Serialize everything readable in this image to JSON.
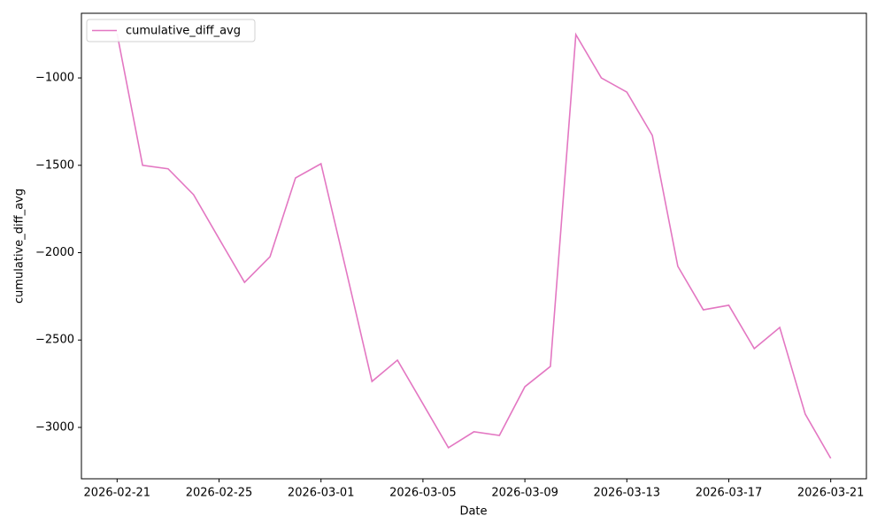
{
  "chart_data": {
    "type": "line",
    "xlabel": "Date",
    "ylabel": "cumulative_diff_avg",
    "x": [
      "2026-02-21",
      "2026-02-22",
      "2026-02-23",
      "2026-02-24",
      "2026-02-25",
      "2026-02-26",
      "2026-02-27",
      "2026-02-28",
      "2026-03-01",
      "2026-03-02",
      "2026-03-03",
      "2026-03-04",
      "2026-03-05",
      "2026-03-06",
      "2026-03-07",
      "2026-03-08",
      "2026-03-09",
      "2026-03-10",
      "2026-03-11",
      "2026-03-12",
      "2026-03-13",
      "2026-03-14",
      "2026-03-15",
      "2026-03-16",
      "2026-03-17",
      "2026-03-18",
      "2026-03-19",
      "2026-03-20",
      "2026-03-21"
    ],
    "series": [
      {
        "name": "cumulative_diff_avg",
        "color": "#e377c2",
        "values": [
          -747,
          -1500,
          -1520,
          -1668,
          -1920,
          -2170,
          -2023,
          -1572,
          -1491,
          -2110,
          -2737,
          -2615,
          -2865,
          -3116,
          -3025,
          -3046,
          -2767,
          -2651,
          -752,
          -1000,
          -1081,
          -1329,
          -2078,
          -2327,
          -2301,
          -2549,
          -2428,
          -2924,
          -3177
        ]
      }
    ],
    "xlim": [
      "2026-02-19T14:24",
      "2026-03-22T09:36"
    ],
    "xticks": [
      "2026-02-21",
      "2026-02-25",
      "2026-03-01",
      "2026-03-05",
      "2026-03-09",
      "2026-03-13",
      "2026-03-17",
      "2026-03-21"
    ],
    "ylim": [
      -3294,
      -630
    ],
    "yticks": [
      {
        "value": -3000,
        "label": "−3000"
      },
      {
        "value": -2500,
        "label": "−2500"
      },
      {
        "value": -2000,
        "label": "−2000"
      },
      {
        "value": -1500,
        "label": "−1500"
      },
      {
        "value": -1000,
        "label": "−1000"
      }
    ],
    "grid": false,
    "legend": "upper left"
  }
}
